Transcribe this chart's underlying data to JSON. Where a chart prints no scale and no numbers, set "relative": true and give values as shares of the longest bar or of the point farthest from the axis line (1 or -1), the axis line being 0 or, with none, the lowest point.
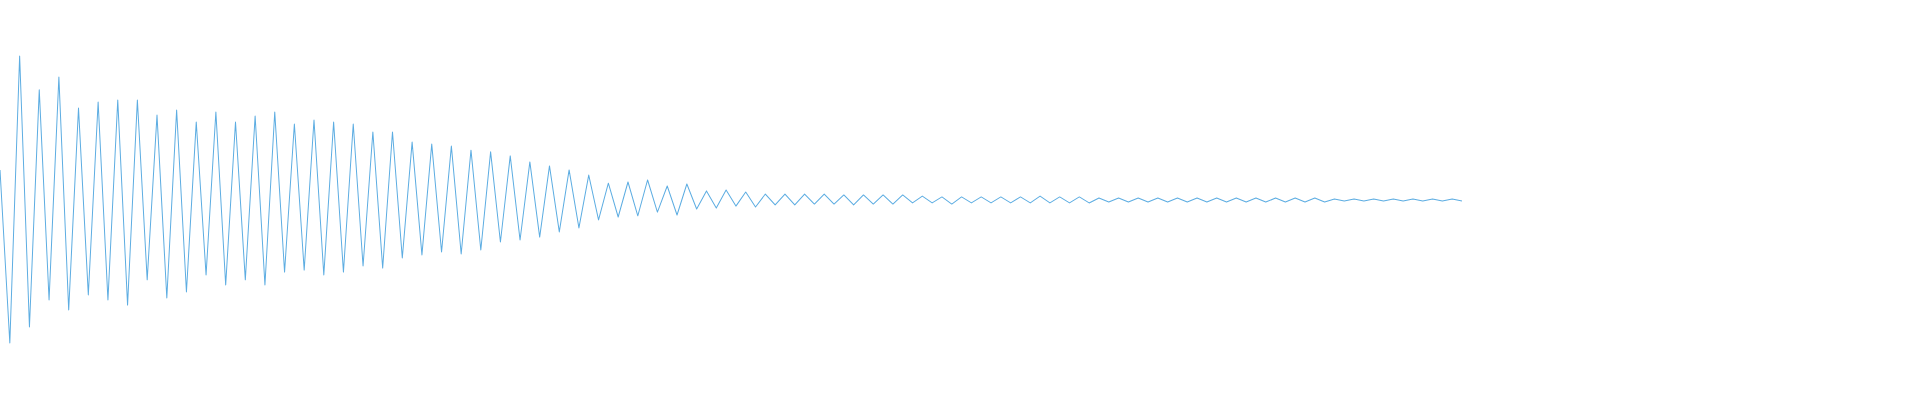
{
  "chart_data": {
    "type": "line",
    "relative": true,
    "categories": [
      null,
      null,
      null,
      null,
      null,
      null,
      null,
      null,
      null,
      null,
      null,
      null,
      null,
      null,
      null,
      null,
      null,
      null,
      null,
      null,
      null,
      null,
      null,
      null,
      null,
      null,
      null,
      null,
      null,
      null,
      null,
      null,
      null,
      null,
      null,
      null,
      null,
      null,
      null,
      null,
      null,
      null,
      null,
      null,
      null,
      null,
      null,
      null,
      null,
      null,
      null,
      null,
      null,
      null,
      null,
      null,
      null,
      null,
      null,
      null,
      null,
      null,
      null,
      null,
      null,
      null,
      null,
      null,
      null,
      null,
      null,
      null,
      null,
      null,
      null,
      null,
      null,
      null,
      null,
      null,
      null,
      null,
      null,
      null,
      null,
      null,
      null,
      null,
      null,
      null,
      null,
      null,
      null,
      null,
      null,
      null,
      null,
      null,
      null,
      null,
      null,
      null,
      null,
      null,
      null,
      null,
      null,
      null,
      null,
      null,
      null,
      null,
      null,
      null,
      null,
      null,
      null,
      null,
      null,
      null,
      null,
      null,
      null,
      null,
      null,
      null,
      null,
      null,
      null,
      null,
      null,
      null,
      null,
      null,
      null,
      null,
      null,
      null,
      null,
      null,
      null,
      null,
      null,
      null,
      null,
      null,
      null,
      null,
      null,
      null
    ],
    "series": [
      {
        "color": "#5dade2",
        "values": [
          0.603,
          0,
          1,
          0.056,
          0.882,
          0.15,
          0.927,
          0.115,
          0.819,
          0.167,
          0.84,
          0.15,
          0.847,
          0.132,
          0.847,
          0.22,
          0.794,
          0.157,
          0.812,
          0.178,
          0.77,
          0.237,
          0.805,
          0.202,
          0.77,
          0.22,
          0.791,
          0.202,
          0.805,
          0.247,
          0.763,
          0.254,
          0.777,
          0.237,
          0.77,
          0.247,
          0.763,
          0.268,
          0.735,
          0.261,
          0.735,
          0.296,
          0.7,
          0.307,
          0.693,
          0.317,
          0.686,
          0.31,
          0.672,
          0.324,
          0.666,
          0.352,
          0.652,
          0.359,
          0.631,
          0.369,
          0.617,
          0.387,
          0.603,
          0.401,
          0.585,
          0.429,
          0.557,
          0.439,
          0.561,
          0.443,
          0.568,
          0.456,
          0.547,
          0.446,
          0.554,
          0.467,
          0.53,
          0.47,
          0.533,
          0.477,
          0.526,
          0.474,
          0.519,
          0.481,
          0.519,
          0.481,
          0.519,
          0.484,
          0.519,
          0.484,
          0.516,
          0.481,
          0.516,
          0.484,
          0.516,
          0.484,
          0.516,
          0.488,
          0.512,
          0.488,
          0.509,
          0.484,
          0.509,
          0.488,
          0.509,
          0.488,
          0.509,
          0.488,
          0.509,
          0.488,
          0.512,
          0.488,
          0.509,
          0.488,
          0.509,
          0.488,
          0.505,
          0.491,
          0.505,
          0.491,
          0.505,
          0.491,
          0.505,
          0.491,
          0.505,
          0.491,
          0.505,
          0.491,
          0.505,
          0.491,
          0.505,
          0.491,
          0.505,
          0.491,
          0.505,
          0.491,
          0.505,
          0.491,
          0.505,
          0.491,
          0.502,
          0.495,
          0.502,
          0.495,
          0.502,
          0.495,
          0.502,
          0.495,
          0.502,
          0.495,
          0.502,
          0.495,
          0.502,
          0.495
        ]
      }
    ]
  }
}
